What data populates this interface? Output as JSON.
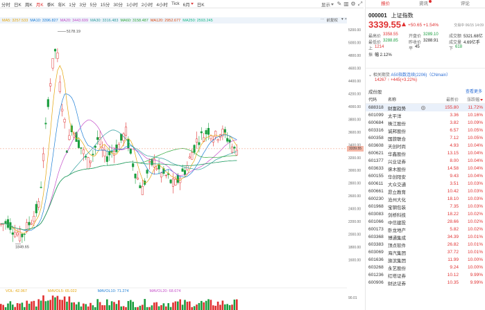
{
  "period_bar": {
    "tabs": [
      {
        "label": "分时",
        "active": false
      },
      {
        "label": "日K",
        "active": false
      },
      {
        "label": "周K",
        "active": false
      },
      {
        "label": "月K",
        "active": true
      },
      {
        "label": "季K",
        "active": false
      },
      {
        "label": "年K",
        "active": false
      },
      {
        "label": "1分",
        "active": false
      },
      {
        "label": "3分",
        "active": false
      },
      {
        "label": "5分",
        "active": false
      },
      {
        "label": "15分",
        "active": false
      },
      {
        "label": "30分",
        "active": false
      },
      {
        "label": "1小时",
        "active": false
      },
      {
        "label": "2小时",
        "active": false
      },
      {
        "label": "4小时",
        "active": false
      },
      {
        "label": "Tick",
        "active": false
      },
      {
        "label": "6月",
        "active": false
      },
      {
        "label": "日K",
        "active": false
      }
    ],
    "display_label": "显示",
    "adjust_label": "前复权"
  },
  "ma_legend": [
    {
      "label": "MA5: 3257.533",
      "color": "#e5a50a"
    },
    {
      "label": "MA10: 3396.827",
      "color": "#1c7ed6"
    },
    {
      "label": "MA20: 3443.699",
      "color": "#c44ec9"
    },
    {
      "label": "MA30: 3316.483",
      "color": "#2f9e9e"
    },
    {
      "label": "MA60: 3158.487",
      "color": "#2fa83b"
    },
    {
      "label": "MA120: 2952.677",
      "color": "#d9480f"
    },
    {
      "label": "MA250: 2593.245",
      "color": "#12b886"
    }
  ],
  "ma_legend_more": "···",
  "chart": {
    "high_label": "5178.19",
    "low_label": "1849.65",
    "current_price_tag": "3339.55",
    "y_axis_labels": [
      "5200.00",
      "5000.00",
      "4800.00",
      "4600.00",
      "4400.00",
      "4200.00",
      "4000.00",
      "3800.00",
      "3600.00",
      "3400.00",
      "3200.00",
      "3000.00",
      "2800.00",
      "2600.00",
      "2400.00",
      "2200.00",
      "2000.00",
      "1800.00",
      "1600.00"
    ],
    "colors": {
      "up": "#e03030",
      "down": "#1a9e3f",
      "price_line": "#f08c6c"
    }
  },
  "volume_legend": [
    {
      "label": "VOL: 42.067",
      "color": "#e5a50a"
    },
    {
      "label": "MAVOL5: 65.022",
      "color": "#e5a50a"
    },
    {
      "label": "MAVOL10: 71.274",
      "color": "#1c7ed6"
    },
    {
      "label": "MAVOL20: 68.674",
      "color": "#c44ec9"
    }
  ],
  "volume_axis_label": "90.01",
  "panel": {
    "tabs": [
      {
        "label": "报价",
        "active": true
      },
      {
        "label": "资讯",
        "active": false
      },
      {
        "label": "评论",
        "active": false
      }
    ],
    "code": "000001",
    "name": "上证指数",
    "price": "3339.55",
    "change": "+50.65  +1.54%",
    "trade_time": "交易中 06/15 14:09",
    "stats": [
      [
        {
          "k": "最高价",
          "v": "3358.55",
          "c": "red"
        },
        {
          "k": "开盘价",
          "v": "3289.10",
          "c": "green"
        },
        {
          "k": "成交额",
          "v": "5321.68亿",
          "c": "dark"
        }
      ],
      [
        {
          "k": "最低价",
          "v": "3288.85",
          "c": "green"
        },
        {
          "k": "昨收价",
          "v": "3288.91",
          "c": "dark"
        },
        {
          "k": "成交量",
          "v": "4.69亿手",
          "c": "dark"
        }
      ],
      [
        {
          "k": "上",
          "v": "1214",
          "c": "red"
        },
        {
          "k": "平",
          "v": "45",
          "c": "dark"
        },
        {
          "k": "下",
          "v": "618",
          "c": "green"
        }
      ],
      [
        {
          "k": "振",
          "v": "幅 2.12%",
          "c": "dark"
        }
      ]
    ],
    "related_label": "相关期货",
    "related_link": "A50指数连续(2206)（CNmain）",
    "related_value": "14267 ↑ +445(+3.22%)",
    "constituents_title": "成份股",
    "constituents_more": "查看更多",
    "table_headers": {
      "code": "代码",
      "name": "名称",
      "price": "最新价",
      "pct": "涨跌幅"
    },
    "rows": [
      {
        "code": "688318",
        "name": "财富趋势",
        "price": "155.80",
        "pct": "11.72%"
      },
      {
        "code": "601099",
        "name": "太平洋",
        "price": "3.36",
        "pct": "10.16%"
      },
      {
        "code": "600684",
        "name": "珠江股份",
        "price": "3.82",
        "pct": "10.09%"
      },
      {
        "code": "603316",
        "name": "诚邦股份",
        "price": "6.57",
        "pct": "10.05%"
      },
      {
        "code": "600358",
        "name": "国旅联合",
        "price": "7.12",
        "pct": "10.05%"
      },
      {
        "code": "603608",
        "name": "天创时尚",
        "price": "4.93",
        "pct": "10.04%"
      },
      {
        "code": "600621",
        "name": "华鑫股份",
        "price": "13.15",
        "pct": "10.04%"
      },
      {
        "code": "601377",
        "name": "兴业证券",
        "price": "8.00",
        "pct": "10.04%"
      },
      {
        "code": "603633",
        "name": "徕木股份",
        "price": "14.58",
        "pct": "10.04%"
      },
      {
        "code": "600155",
        "name": "华创阳安",
        "price": "9.43",
        "pct": "10.04%"
      },
      {
        "code": "600611",
        "name": "大众交通",
        "price": "3.51",
        "pct": "10.03%"
      },
      {
        "code": "600661",
        "name": "昂立教育",
        "price": "10.42",
        "pct": "10.03%"
      },
      {
        "code": "600230",
        "name": "沧州大化",
        "price": "18.10",
        "pct": "10.03%"
      },
      {
        "code": "601968",
        "name": "宝钢包装",
        "price": "7.35",
        "pct": "10.03%"
      },
      {
        "code": "603083",
        "name": "剑桥科技",
        "price": "18.22",
        "pct": "10.02%"
      },
      {
        "code": "601066",
        "name": "中信建投",
        "price": "28.66",
        "pct": "10.02%"
      },
      {
        "code": "600173",
        "name": "卧龙地产",
        "price": "5.82",
        "pct": "10.02%"
      },
      {
        "code": "603368",
        "name": "博通集成",
        "price": "34.39",
        "pct": "10.01%"
      },
      {
        "code": "603383",
        "name": "顶点软件",
        "price": "26.82",
        "pct": "10.01%"
      },
      {
        "code": "603069",
        "name": "海汽集团",
        "price": "37.72",
        "pct": "10.01%"
      },
      {
        "code": "601636",
        "name": "旗滨集团",
        "price": "11.99",
        "pct": "10.00%"
      },
      {
        "code": "603268",
        "name": "永艺股份",
        "price": "9.24",
        "pct": "10.00%"
      },
      {
        "code": "601236",
        "name": "红塔证券",
        "price": "10.12",
        "pct": "9.99%"
      },
      {
        "code": "600906",
        "name": "财达证券",
        "price": "10.35",
        "pct": "9.99%"
      }
    ]
  }
}
